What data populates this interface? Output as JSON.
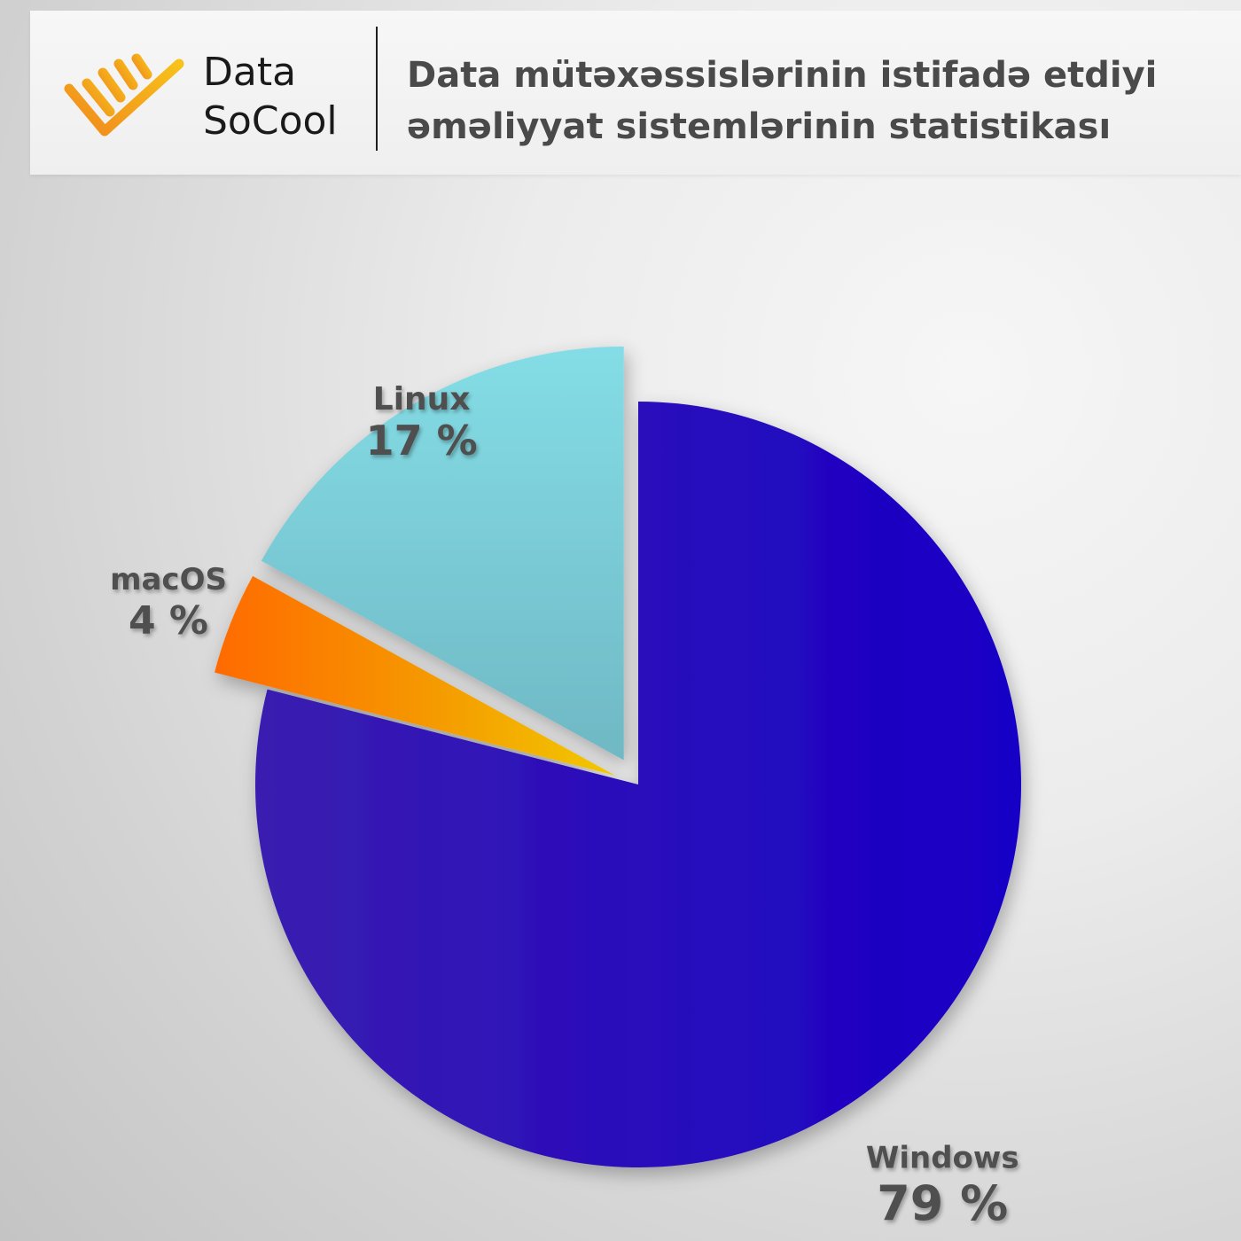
{
  "header": {
    "brand_line1": "Data",
    "brand_line2": "SoCool",
    "title_line1": "Data mütəxəssislərinin istifadə etdiyi",
    "title_line2": "əməliyyat sistemlərinin statistikası"
  },
  "chart_data": {
    "type": "pie",
    "title": "Data mütəxəssislərinin istifadə etdiyi əməliyyat sistemlərinin statistikası",
    "categories": [
      "Windows",
      "macOS",
      "Linux"
    ],
    "values": [
      79,
      4,
      17
    ],
    "value_labels": [
      "79 %",
      "4 %",
      "17 %"
    ],
    "colors": [
      "#1e0ab8",
      "#ff7a00",
      "#7bd2dc"
    ],
    "start_angle_deg": 0,
    "direction": "clockwise"
  }
}
